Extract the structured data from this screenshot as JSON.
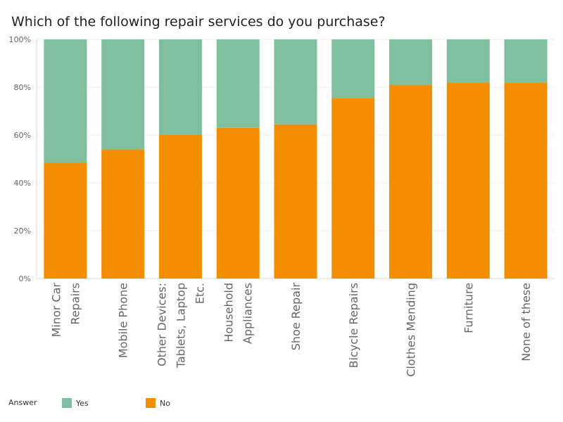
{
  "chart_data": {
    "type": "bar",
    "stacked": true,
    "title": "Which of the following repair services do you purchase?",
    "categories": [
      "Minor Car Repairs",
      "Mobile Phone",
      "Other Devices: Tablets, Laptop Etc.",
      "Household Appliances",
      "Shoe Repair",
      "Bicycle Repairs",
      "Clothes Mending",
      "Furniture",
      "None of these"
    ],
    "category_label_lines": [
      [
        "Minor Car",
        "Repairs"
      ],
      [
        "Mobile Phone"
      ],
      [
        "Other Devices:",
        "Tablets, Laptop",
        "Etc."
      ],
      [
        "Household",
        "Appliances"
      ],
      [
        "Shoe Repair"
      ],
      [
        "Bicycle Repairs"
      ],
      [
        "Clothes Mending"
      ],
      [
        "Furniture"
      ],
      [
        "None of these"
      ]
    ],
    "series": [
      {
        "name": "No",
        "color": "#F28E00",
        "values": [
          48.5,
          54,
          60,
          63,
          64.5,
          75.5,
          81,
          82,
          82
        ]
      },
      {
        "name": "Yes",
        "color": "#7FBE9E",
        "values": [
          51.5,
          46,
          40,
          37,
          35.5,
          24.5,
          19,
          18,
          18
        ]
      }
    ],
    "ylim": [
      0,
      100
    ],
    "y_ticks": [
      "0%",
      "20%",
      "40%",
      "60%",
      "80%",
      "100%"
    ],
    "y_tick_values": [
      0,
      20,
      40,
      60,
      80,
      100
    ],
    "grid": true,
    "legend": {
      "title": "Answer",
      "position": "bottom-left",
      "items": [
        {
          "label": "Yes",
          "color": "#7FBE9E"
        },
        {
          "label": "No",
          "color": "#F28E00"
        }
      ]
    }
  }
}
